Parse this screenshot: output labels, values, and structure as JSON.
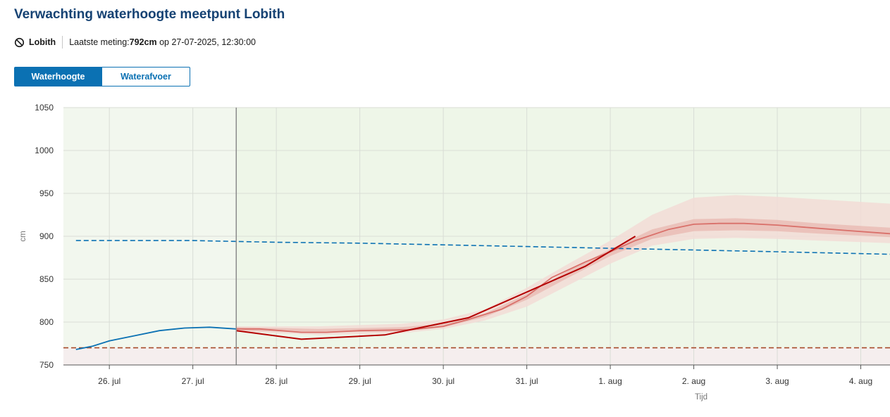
{
  "header": {
    "title": "Verwachting waterhoogte meetpunt Lobith",
    "station": "Lobith",
    "last_label": "Laatste meting:",
    "last_value": "792cm",
    "last_date": " op 27-07-2025, 12:30:00"
  },
  "tabs": [
    {
      "label": "Waterhoogte",
      "active": true
    },
    {
      "label": "Waterafvoer",
      "active": false
    }
  ],
  "chart_data": {
    "type": "line",
    "title": "",
    "ylabel": "cm",
    "xlabel": "Tijd",
    "ylim": [
      750,
      1050
    ],
    "xlim_days": [
      25.45,
      35.35
    ],
    "yticks": [
      750,
      800,
      850,
      900,
      950,
      1000,
      1050
    ],
    "xticks": [
      {
        "day": 26,
        "label": "26. jul"
      },
      {
        "day": 27,
        "label": "27. jul"
      },
      {
        "day": 28,
        "label": "28. jul"
      },
      {
        "day": 29,
        "label": "29. jul"
      },
      {
        "day": 30,
        "label": "30. jul"
      },
      {
        "day": 31,
        "label": "31. jul"
      },
      {
        "day": 32,
        "label": "1. aug"
      },
      {
        "day": 33,
        "label": "2. aug"
      },
      {
        "day": 34,
        "label": "3. aug"
      },
      {
        "day": 35,
        "label": "4. aug"
      }
    ],
    "now_day": 27.52,
    "grid": true,
    "colors": {
      "plot_bg_history": "#f2f7ee",
      "plot_bg_forecast": "#eef6e8",
      "low_band": "#f5eeee",
      "measured": "#0b71b3",
      "reference": "#0b71b3",
      "low_threshold": "#a64b2a",
      "forecast_line": "#b40000",
      "ensemble_median": "#d9706a",
      "band_inner": "#e8b8b0",
      "band_outer": "#f2dcd6"
    },
    "series": [
      {
        "key": "measured",
        "points": [
          [
            25.6,
            768
          ],
          [
            25.8,
            772
          ],
          [
            26.0,
            778
          ],
          [
            26.3,
            784
          ],
          [
            26.6,
            790
          ],
          [
            26.9,
            793
          ],
          [
            27.2,
            794
          ],
          [
            27.52,
            792
          ]
        ]
      },
      {
        "key": "reference",
        "points": [
          [
            25.6,
            895
          ],
          [
            27.0,
            895
          ],
          [
            28.0,
            893
          ],
          [
            29.0,
            892
          ],
          [
            30.0,
            890
          ],
          [
            31.0,
            888
          ],
          [
            32.0,
            886
          ],
          [
            33.0,
            884
          ],
          [
            34.0,
            882
          ],
          [
            35.35,
            879
          ]
        ]
      },
      {
        "key": "low_threshold",
        "points": [
          [
            25.45,
            770
          ],
          [
            35.35,
            770
          ]
        ]
      },
      {
        "key": "forecast_line",
        "points": [
          [
            27.52,
            790
          ],
          [
            28.3,
            780
          ],
          [
            29.3,
            785
          ],
          [
            30.3,
            805
          ],
          [
            31.0,
            835
          ],
          [
            31.7,
            865
          ],
          [
            32.3,
            900
          ]
        ]
      },
      {
        "key": "ensemble_median",
        "points": [
          [
            27.52,
            792
          ],
          [
            27.8,
            792
          ],
          [
            28.3,
            788
          ],
          [
            28.6,
            788
          ],
          [
            29.0,
            790
          ],
          [
            29.6,
            791
          ],
          [
            30.0,
            795
          ],
          [
            30.3,
            803
          ],
          [
            30.7,
            815
          ],
          [
            31.0,
            830
          ],
          [
            31.3,
            852
          ],
          [
            31.7,
            870
          ],
          [
            32.0,
            882
          ],
          [
            32.3,
            895
          ],
          [
            32.7,
            908
          ],
          [
            33.0,
            914
          ],
          [
            33.3,
            915
          ],
          [
            33.6,
            915
          ],
          [
            34.0,
            913
          ],
          [
            34.4,
            910
          ],
          [
            34.8,
            907
          ],
          [
            35.35,
            903
          ]
        ]
      },
      {
        "key": "band_outer",
        "upper": [
          [
            27.52,
            795
          ],
          [
            28.5,
            795
          ],
          [
            29.5,
            798
          ],
          [
            30.0,
            803
          ],
          [
            30.5,
            815
          ],
          [
            31.0,
            840
          ],
          [
            31.5,
            868
          ],
          [
            32.0,
            895
          ],
          [
            32.5,
            925
          ],
          [
            33.0,
            945
          ],
          [
            33.5,
            948
          ],
          [
            34.0,
            946
          ],
          [
            34.5,
            943
          ],
          [
            35.35,
            938
          ]
        ],
        "lower": [
          [
            27.52,
            789
          ],
          [
            28.5,
            785
          ],
          [
            29.5,
            787
          ],
          [
            30.0,
            792
          ],
          [
            30.5,
            802
          ],
          [
            31.0,
            818
          ],
          [
            31.5,
            843
          ],
          [
            32.0,
            868
          ],
          [
            32.5,
            889
          ],
          [
            33.0,
            897
          ],
          [
            33.5,
            898
          ],
          [
            34.0,
            897
          ],
          [
            34.5,
            895
          ],
          [
            35.35,
            892
          ]
        ]
      },
      {
        "key": "band_inner",
        "upper": [
          [
            27.52,
            794
          ],
          [
            28.5,
            792
          ],
          [
            29.5,
            794
          ],
          [
            30.0,
            798
          ],
          [
            30.5,
            810
          ],
          [
            31.0,
            833
          ],
          [
            31.5,
            860
          ],
          [
            32.0,
            885
          ],
          [
            32.5,
            908
          ],
          [
            33.0,
            920
          ],
          [
            33.5,
            921
          ],
          [
            34.0,
            919
          ],
          [
            34.5,
            915
          ],
          [
            35.35,
            910
          ]
        ],
        "lower": [
          [
            27.52,
            790
          ],
          [
            28.5,
            788
          ],
          [
            29.5,
            789
          ],
          [
            30.0,
            794
          ],
          [
            30.5,
            806
          ],
          [
            31.0,
            826
          ],
          [
            31.5,
            852
          ],
          [
            32.0,
            877
          ],
          [
            32.5,
            897
          ],
          [
            33.0,
            906
          ],
          [
            33.5,
            907
          ],
          [
            34.0,
            906
          ],
          [
            34.5,
            903
          ],
          [
            35.35,
            899
          ]
        ]
      }
    ]
  }
}
